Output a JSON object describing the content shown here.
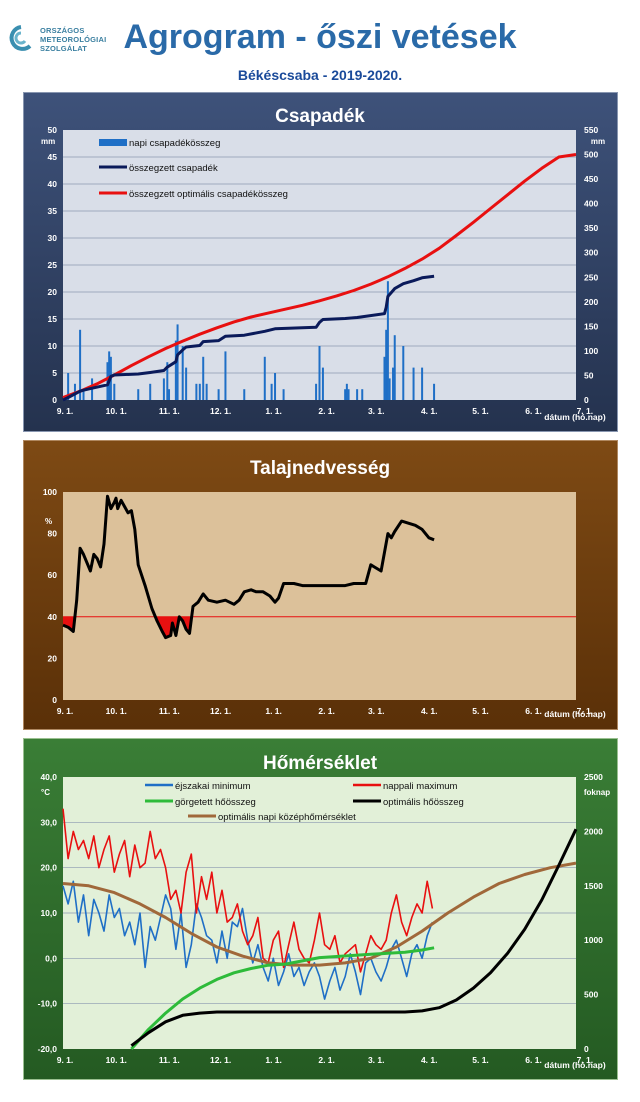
{
  "header": {
    "org_line1": "ORSZÁGOS",
    "org_line2": "METEOROLÓGIAI",
    "org_line3": "SZOLGÁLAT",
    "title": "Agrogram - őszi vetések",
    "subtitle": "Békéscsaba - 2019-2020."
  },
  "colors": {
    "logo": "#3a8fb0",
    "title": "#2a6aa8",
    "panel1_bg": "#2e3e5e",
    "panel1_plot": "#d9dee8",
    "panel2_bg": "#6a3a0a",
    "panel2_plot": "#dcc19a",
    "panel3_bg": "#2c6a2a",
    "panel3_plot": "#e2f0d8"
  },
  "chart_data": [
    {
      "type": "bar",
      "title": "Csapadék",
      "x_tick_labels": [
        "9. 1.",
        "10. 1.",
        "11. 1.",
        "12. 1.",
        "1. 1.",
        "2. 1.",
        "3. 1.",
        "4. 1.",
        "5. 1.",
        "6. 1.",
        "7. 1."
      ],
      "x_axis_label": "dátum (hó.nap)",
      "xlim": [
        0,
        300
      ],
      "y_left": {
        "unit": "mm",
        "lim": [
          0,
          50
        ],
        "ticks": [
          0,
          5,
          10,
          15,
          20,
          25,
          30,
          35,
          40,
          45,
          50
        ]
      },
      "y_right": {
        "unit": "mm",
        "lim": [
          0,
          550
        ],
        "ticks": [
          0,
          50,
          100,
          150,
          200,
          250,
          300,
          350,
          400,
          450,
          500,
          550
        ]
      },
      "legend": [
        "napi csapadékösszeg",
        "összegzett csapadék",
        "összegzett optimális csapadékösszeg"
      ],
      "series": [
        {
          "name": "napi csapadékösszeg",
          "color": "#1f6fc6",
          "axis": "left",
          "days": [
            3,
            7,
            10,
            12,
            17,
            26,
            27,
            28,
            30,
            44,
            51,
            59,
            61,
            62,
            66,
            67,
            70,
            72,
            78,
            80,
            82,
            84,
            91,
            95,
            106,
            118,
            122,
            124,
            129,
            148,
            150,
            152,
            165,
            166,
            167,
            172,
            175,
            188,
            189,
            190,
            191,
            193,
            194,
            199,
            205,
            210,
            217
          ],
          "values": [
            5,
            3,
            13,
            2,
            4,
            7,
            9,
            8,
            3,
            2,
            3,
            4,
            7,
            2,
            11,
            14,
            10,
            6,
            3,
            3,
            8,
            3,
            2,
            9,
            2,
            8,
            3,
            5,
            2,
            3,
            10,
            6,
            2,
            3,
            2,
            2,
            2,
            8,
            13,
            22,
            4,
            6,
            12,
            10,
            6,
            6,
            3
          ]
        },
        {
          "name": "összegzett csapadék",
          "color": "#0a1a5a",
          "axis": "right",
          "days": [
            0,
            3,
            10,
            12,
            17,
            26,
            28,
            30,
            44,
            51,
            59,
            61,
            66,
            67,
            70,
            72,
            80,
            82,
            91,
            95,
            106,
            118,
            124,
            148,
            150,
            152,
            165,
            172,
            188,
            189,
            190,
            191,
            194,
            199,
            205,
            210,
            217
          ],
          "values": [
            0,
            5,
            18,
            20,
            24,
            31,
            48,
            51,
            53,
            56,
            60,
            67,
            78,
            92,
            102,
            108,
            111,
            119,
            121,
            130,
            132,
            140,
            145,
            148,
            158,
            164,
            166,
            168,
            176,
            189,
            211,
            215,
            227,
            237,
            243,
            249,
            252
          ]
        },
        {
          "name": "összegzett optimális csapadékösszeg",
          "color": "#e81010",
          "axis": "right",
          "days": [
            0,
            10,
            20,
            30,
            40,
            50,
            60,
            70,
            80,
            90,
            100,
            110,
            120,
            130,
            140,
            150,
            160,
            170,
            180,
            190,
            200,
            210,
            220,
            230,
            240,
            250,
            260,
            270,
            280,
            290,
            300
          ],
          "values": [
            5,
            18,
            33,
            51,
            70,
            88,
            105,
            120,
            134,
            147,
            159,
            169,
            177,
            185,
            193,
            202,
            212,
            223,
            236,
            251,
            268,
            287,
            309,
            335,
            362,
            390,
            418,
            446,
            472,
            495,
            500
          ]
        }
      ]
    },
    {
      "type": "line",
      "title": "Talajnedvesség",
      "x_tick_labels": [
        "9. 1.",
        "10. 1.",
        "11. 1.",
        "12. 1.",
        "1. 1.",
        "2. 1.",
        "3. 1.",
        "4. 1.",
        "5. 1.",
        "6. 1.",
        "7. 1."
      ],
      "x_axis_label": "dátum (hó.nap)",
      "xlim": [
        0,
        300
      ],
      "y_left": {
        "unit": "%",
        "lim": [
          0,
          100
        ],
        "ticks": [
          0,
          20,
          40,
          60,
          80,
          100
        ]
      },
      "threshold": {
        "value": 40,
        "color": "#e81010"
      },
      "series": [
        {
          "name": "talajnedvesség",
          "color": "#000000",
          "days": [
            0,
            3,
            6,
            8,
            10,
            12,
            16,
            18,
            20,
            22,
            24,
            26,
            28,
            30,
            31,
            32,
            34,
            36,
            38,
            40,
            42,
            44,
            48,
            52,
            55,
            58,
            60,
            63,
            64,
            66,
            68,
            70,
            72,
            74,
            76,
            79,
            82,
            85,
            90,
            95,
            100,
            103,
            106,
            110,
            113,
            117,
            121,
            124,
            126,
            129,
            135,
            140,
            150,
            165,
            170,
            177,
            180,
            182,
            186,
            190,
            192,
            194,
            198,
            202,
            206,
            210,
            214,
            217
          ],
          "values": [
            36,
            35,
            33,
            48,
            73,
            70,
            62,
            70,
            68,
            64,
            75,
            98,
            92,
            95,
            97,
            92,
            96,
            93,
            90,
            91,
            82,
            65,
            55,
            44,
            38,
            33,
            30,
            31,
            37,
            31,
            40,
            38,
            34,
            32,
            45,
            47,
            51,
            48,
            47,
            48,
            46,
            48,
            52,
            53,
            52,
            52,
            50,
            47,
            49,
            56,
            56,
            55,
            55,
            55,
            56,
            56,
            65,
            64,
            62,
            80,
            78,
            81,
            86,
            85,
            84,
            82,
            78,
            77
          ]
        }
      ]
    },
    {
      "type": "line",
      "title": "Hőmérséklet",
      "x_tick_labels": [
        "9. 1.",
        "10. 1.",
        "11. 1.",
        "12. 1.",
        "1. 1.",
        "2. 1.",
        "3. 1.",
        "4. 1.",
        "5. 1.",
        "6. 1.",
        "7. 1."
      ],
      "x_axis_label": "dátum (hó.nap)",
      "xlim": [
        0,
        300
      ],
      "y_left": {
        "unit": "°C",
        "lim": [
          -20,
          40
        ],
        "ticks": [
          "-20,0",
          "-10,0",
          "0,0",
          "10,0",
          "20,0",
          "30,0",
          "40,0"
        ]
      },
      "y_right": {
        "unit": "foknap",
        "lim": [
          0,
          2500
        ],
        "ticks": [
          0,
          500,
          1000,
          1500,
          2000,
          2500
        ]
      },
      "legend": [
        "éjszakai minimum",
        "nappali maximum",
        "görgetett hőösszeg",
        "optimális hőösszeg",
        "optimális napi középhőmérséklet"
      ],
      "series": [
        {
          "name": "éjszakai minimum",
          "color": "#1f6fc6",
          "axis": "left",
          "days": [
            0,
            3,
            6,
            9,
            12,
            15,
            18,
            21,
            24,
            27,
            30,
            33,
            36,
            39,
            42,
            45,
            48,
            51,
            54,
            57,
            60,
            63,
            66,
            69,
            72,
            75,
            78,
            81,
            84,
            87,
            90,
            93,
            96,
            99,
            102,
            105,
            108,
            111,
            114,
            117,
            120,
            123,
            126,
            129,
            132,
            135,
            138,
            141,
            144,
            147,
            150,
            153,
            156,
            159,
            162,
            165,
            168,
            171,
            174,
            177,
            180,
            183,
            186,
            189,
            192,
            195,
            198,
            201,
            204,
            207,
            210,
            213,
            216
          ],
          "values": [
            16,
            12,
            17,
            8,
            14,
            5,
            13,
            10,
            6,
            14,
            9,
            11,
            5,
            8,
            3,
            10,
            -2,
            7,
            4,
            9,
            14,
            11,
            2,
            10,
            -2,
            3,
            12,
            9,
            5,
            4,
            -1,
            6,
            0,
            8,
            7,
            11,
            4,
            -1,
            3,
            -2,
            -5,
            0,
            -6,
            -3,
            1,
            -4,
            -2,
            -6,
            -3,
            -1,
            -4,
            -9,
            -5,
            -2,
            -7,
            -4,
            1,
            -3,
            -8,
            -1,
            0,
            -3,
            -5,
            -2,
            2,
            4,
            0,
            -4,
            1,
            3,
            0,
            5,
            8
          ]
        },
        {
          "name": "nappali maximum",
          "color": "#e81010",
          "axis": "left",
          "days": [
            0,
            3,
            6,
            9,
            12,
            15,
            18,
            21,
            24,
            27,
            30,
            33,
            36,
            39,
            42,
            45,
            48,
            51,
            54,
            57,
            60,
            63,
            66,
            69,
            72,
            75,
            78,
            81,
            84,
            87,
            90,
            93,
            96,
            99,
            102,
            105,
            108,
            111,
            114,
            117,
            120,
            123,
            126,
            129,
            132,
            135,
            138,
            141,
            144,
            147,
            150,
            153,
            156,
            159,
            162,
            165,
            168,
            171,
            174,
            177,
            180,
            183,
            186,
            189,
            192,
            195,
            198,
            201,
            204,
            207,
            210,
            213,
            216
          ],
          "values": [
            33,
            22,
            28,
            24,
            26,
            22,
            27,
            20,
            24,
            27,
            19,
            23,
            26,
            18,
            25,
            20,
            21,
            28,
            22,
            24,
            20,
            13,
            15,
            10,
            19,
            23,
            10,
            18,
            13,
            19,
            10,
            15,
            8,
            9,
            12,
            6,
            3,
            5,
            9,
            0,
            -1,
            4,
            6,
            -2,
            3,
            8,
            2,
            0,
            -1,
            4,
            10,
            3,
            2,
            5,
            -1,
            1,
            2,
            3,
            -3,
            1,
            5,
            3,
            2,
            4,
            10,
            14,
            8,
            5,
            9,
            12,
            10,
            17,
            11
          ]
        },
        {
          "name": "görgetett hőösszeg",
          "color": "#2ebb3a",
          "axis": "right",
          "days": [
            40,
            50,
            60,
            70,
            80,
            90,
            100,
            110,
            120,
            130,
            140,
            150,
            160,
            170,
            180,
            190,
            200,
            210,
            217
          ],
          "values": [
            0,
            180,
            330,
            460,
            560,
            640,
            700,
            740,
            770,
            780,
            810,
            840,
            850,
            860,
            870,
            880,
            890,
            910,
            930
          ]
        },
        {
          "name": "optimális hőösszeg",
          "color": "#000000",
          "axis": "right",
          "days": [
            40,
            50,
            60,
            70,
            80,
            90,
            100,
            110,
            120,
            130,
            140,
            150,
            160,
            170,
            180,
            190,
            200,
            210,
            220,
            230,
            240,
            250,
            260,
            270,
            280,
            290,
            300
          ],
          "values": [
            30,
            150,
            250,
            310,
            330,
            340,
            340,
            340,
            340,
            340,
            340,
            340,
            340,
            340,
            340,
            340,
            340,
            350,
            380,
            450,
            560,
            700,
            880,
            1100,
            1370,
            1690,
            2020
          ]
        },
        {
          "name": "optimális napi középhőmérséklet",
          "color": "#a0683a",
          "axis": "left",
          "days": [
            0,
            15,
            30,
            45,
            60,
            75,
            90,
            105,
            120,
            135,
            150,
            165,
            180,
            195,
            210,
            225,
            240,
            255,
            270,
            285,
            300
          ],
          "values": [
            16.5,
            16,
            14.5,
            12,
            9,
            5.5,
            2.5,
            0.5,
            -1,
            -1.5,
            -1.5,
            -1,
            0,
            2.5,
            6,
            10,
            13.5,
            16.5,
            18.5,
            20,
            21
          ]
        }
      ]
    }
  ]
}
